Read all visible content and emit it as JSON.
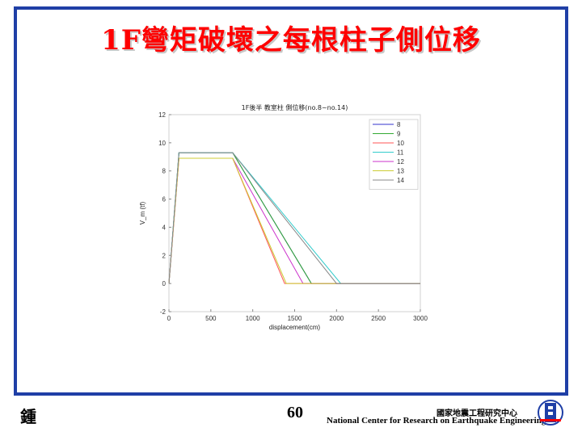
{
  "slide": {
    "title": "1F彎矩破壞之每根柱子側位移",
    "footer_left": "鍾",
    "page_number": "60",
    "org_name_zh": "國家地震工程研究中心",
    "org_name_en": "National Center for Research on Earthquake Engineering",
    "logo_icon": "ncree-logo-icon"
  },
  "colors": {
    "frame": "#1f3fa6",
    "title": "#ff0000"
  },
  "chart_data": {
    "type": "line",
    "title": "1F後半 教室柱 側位移(no.8~no.14)",
    "xlabel": "displacement(cm)",
    "ylabel": "V_m (tf)",
    "xlim": [
      0,
      3000
    ],
    "ylim": [
      -2,
      12
    ],
    "xticks": [
      0,
      500,
      1000,
      1500,
      2000,
      2500,
      3000
    ],
    "yticks": [
      -2,
      0,
      2,
      4,
      6,
      8,
      10,
      12
    ],
    "grid": false,
    "legend_position": "top-right",
    "series": [
      {
        "name": "8",
        "color": "#3333cc",
        "x": [
          0,
          120,
          760,
          1700,
          3000
        ],
        "y": [
          0,
          9.3,
          9.3,
          0,
          0
        ]
      },
      {
        "name": "9",
        "color": "#33aa33",
        "x": [
          0,
          120,
          760,
          1700,
          3000
        ],
        "y": [
          0,
          9.3,
          9.3,
          0,
          0
        ]
      },
      {
        "name": "10",
        "color": "#ff5555",
        "x": [
          0,
          120,
          760,
          1380,
          3000
        ],
        "y": [
          0,
          8.9,
          8.9,
          0,
          0
        ]
      },
      {
        "name": "11",
        "color": "#33cccc",
        "x": [
          0,
          120,
          760,
          2050,
          3000
        ],
        "y": [
          0,
          9.3,
          9.3,
          0,
          0
        ]
      },
      {
        "name": "12",
        "color": "#cc33cc",
        "x": [
          0,
          120,
          760,
          1600,
          3000
        ],
        "y": [
          0,
          8.9,
          8.9,
          0,
          0
        ]
      },
      {
        "name": "13",
        "color": "#cccc33",
        "x": [
          0,
          120,
          760,
          1400,
          3000
        ],
        "y": [
          0,
          8.9,
          8.9,
          0,
          0
        ]
      },
      {
        "name": "14",
        "color": "#888888",
        "x": [
          0,
          120,
          760,
          2000,
          3000
        ],
        "y": [
          0,
          9.3,
          9.3,
          0,
          0
        ]
      }
    ]
  }
}
